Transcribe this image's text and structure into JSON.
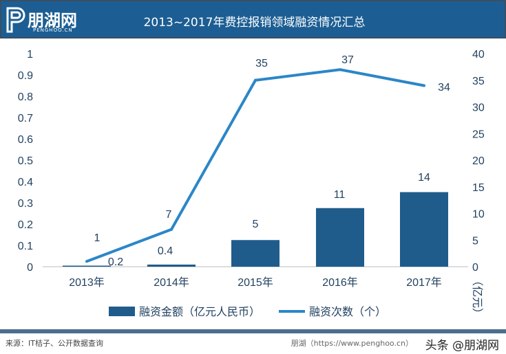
{
  "header": {
    "logo": "朋湖网",
    "logo_sub": "PENGHOO.CN",
    "title": "2013~2017年费控报销领域融资情况汇总"
  },
  "footer": {
    "source": "来源：IT桔子、公开数据查询",
    "credit": "朋湖（https://www.penghoo.cn）",
    "watermark": "头条 @朋湖网"
  },
  "colors": {
    "header": "#1c5e93",
    "bar": "#1f5c8c",
    "line": "#2b86c8"
  },
  "chart_data": {
    "type": "bar+line",
    "categories": [
      "2013年",
      "2014年",
      "2015年",
      "2016年",
      "2017年"
    ],
    "left_axis": {
      "ticks": [
        "0",
        "0.1",
        "0.2",
        "0.3",
        "0.4",
        "0.5",
        "0.6",
        "0.7",
        "0.8",
        "0.9",
        "1"
      ],
      "ylim": [
        0,
        1
      ]
    },
    "right_axis": {
      "ticks": [
        "0",
        "5",
        "10",
        "15",
        "20",
        "25",
        "30",
        "35",
        "40"
      ],
      "ylim": [
        0,
        40
      ],
      "label": "（亿元）"
    },
    "series": [
      {
        "name": "融资金额（亿元人民币）",
        "type": "bar",
        "values": [
          0.2,
          0.4,
          5,
          11,
          14
        ],
        "labels": [
          "0.2",
          "0.4",
          "5",
          "11",
          "14"
        ]
      },
      {
        "name": "融资次数（个）",
        "type": "line",
        "values": [
          1,
          7,
          35,
          37,
          34
        ],
        "labels": [
          "1",
          "7",
          "35",
          "37",
          "34"
        ]
      }
    ],
    "legend": "bottom"
  }
}
